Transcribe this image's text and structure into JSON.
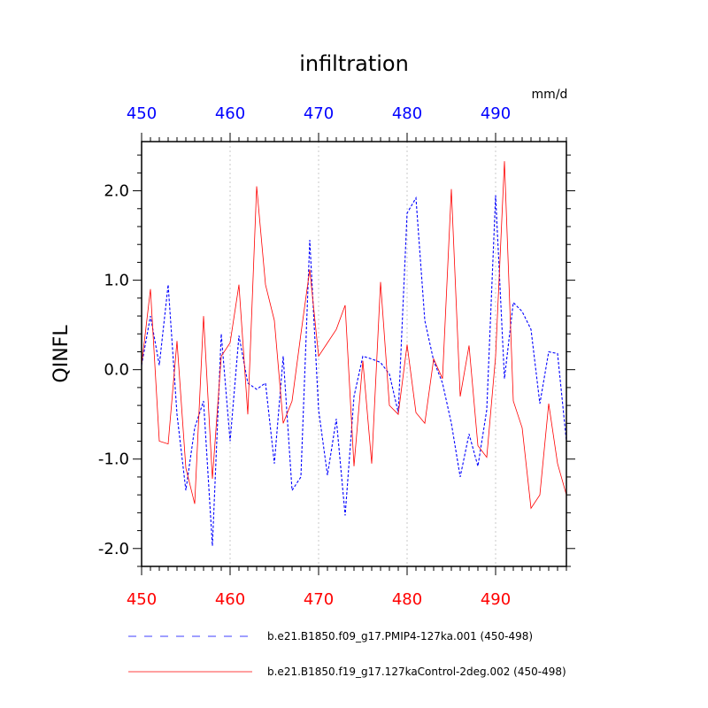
{
  "chart_data": {
    "type": "line",
    "title": "infiltration",
    "ylabel": "QINFL",
    "units": "mm/d",
    "xlim": [
      450,
      498
    ],
    "ylim": [
      -2.2,
      2.55
    ],
    "x_ticks": [
      450,
      460,
      470,
      480,
      490
    ],
    "x_tick_labels": [
      "450",
      "460",
      "470",
      "480",
      "490"
    ],
    "y_ticks": [
      -2.0,
      -1.0,
      0.0,
      1.0,
      2.0
    ],
    "y_tick_labels": [
      "-2.0",
      "-1.0",
      "0.0",
      "1.0",
      "2.0"
    ],
    "top_axis_color": "#0000ff",
    "bottom_axis_color": "#ff0000",
    "vertical_gridlines": [
      460,
      470,
      480,
      490
    ],
    "x": [
      450,
      451,
      452,
      453,
      454,
      455,
      456,
      457,
      458,
      459,
      460,
      461,
      462,
      463,
      464,
      465,
      466,
      467,
      468,
      469,
      470,
      471,
      472,
      473,
      474,
      475,
      476,
      477,
      478,
      479,
      480,
      481,
      482,
      483,
      484,
      485,
      486,
      487,
      488,
      489,
      490,
      491,
      492,
      493,
      494,
      495,
      496,
      497,
      498
    ],
    "series": [
      {
        "name": "b.e21.B1850.f09_g17.PMIP4-127ka.001 (450-498)",
        "color": "#0000ff",
        "style": "dashed",
        "values": [
          0.05,
          0.6,
          0.05,
          0.95,
          -0.5,
          -1.35,
          -0.65,
          -0.35,
          -1.97,
          0.4,
          -0.8,
          0.38,
          -0.15,
          -0.22,
          -0.15,
          -1.05,
          0.15,
          -1.35,
          -1.2,
          1.45,
          -0.45,
          -1.18,
          -0.55,
          -1.63,
          -0.3,
          0.15,
          0.12,
          0.08,
          -0.05,
          -0.48,
          1.75,
          1.92,
          0.55,
          0.1,
          -0.15,
          -0.6,
          -1.2,
          -0.72,
          -1.08,
          -0.45,
          1.95,
          -0.1,
          0.75,
          0.65,
          0.45,
          -0.38,
          0.2,
          0.18,
          -0.8
        ]
      },
      {
        "name": "b.e21.B1850.f19_g17.127kaControl-2deg.002 (450-498)",
        "color": "#ff0000",
        "style": "solid",
        "values": [
          0.05,
          0.9,
          -0.8,
          -0.83,
          0.32,
          -1.1,
          -1.5,
          0.6,
          -1.22,
          0.15,
          0.3,
          0.95,
          -0.5,
          2.05,
          0.95,
          0.55,
          -0.6,
          -0.35,
          0.4,
          1.12,
          0.15,
          0.3,
          0.45,
          0.72,
          -1.08,
          0.1,
          -1.05,
          0.98,
          -0.4,
          -0.5,
          0.28,
          -0.48,
          -0.6,
          0.12,
          -0.1,
          2.02,
          -0.3,
          0.27,
          -0.85,
          -0.98,
          0.15,
          2.33,
          -0.35,
          -0.65,
          -1.55,
          -1.4,
          -0.38,
          -1.05,
          -1.4
        ]
      }
    ]
  }
}
